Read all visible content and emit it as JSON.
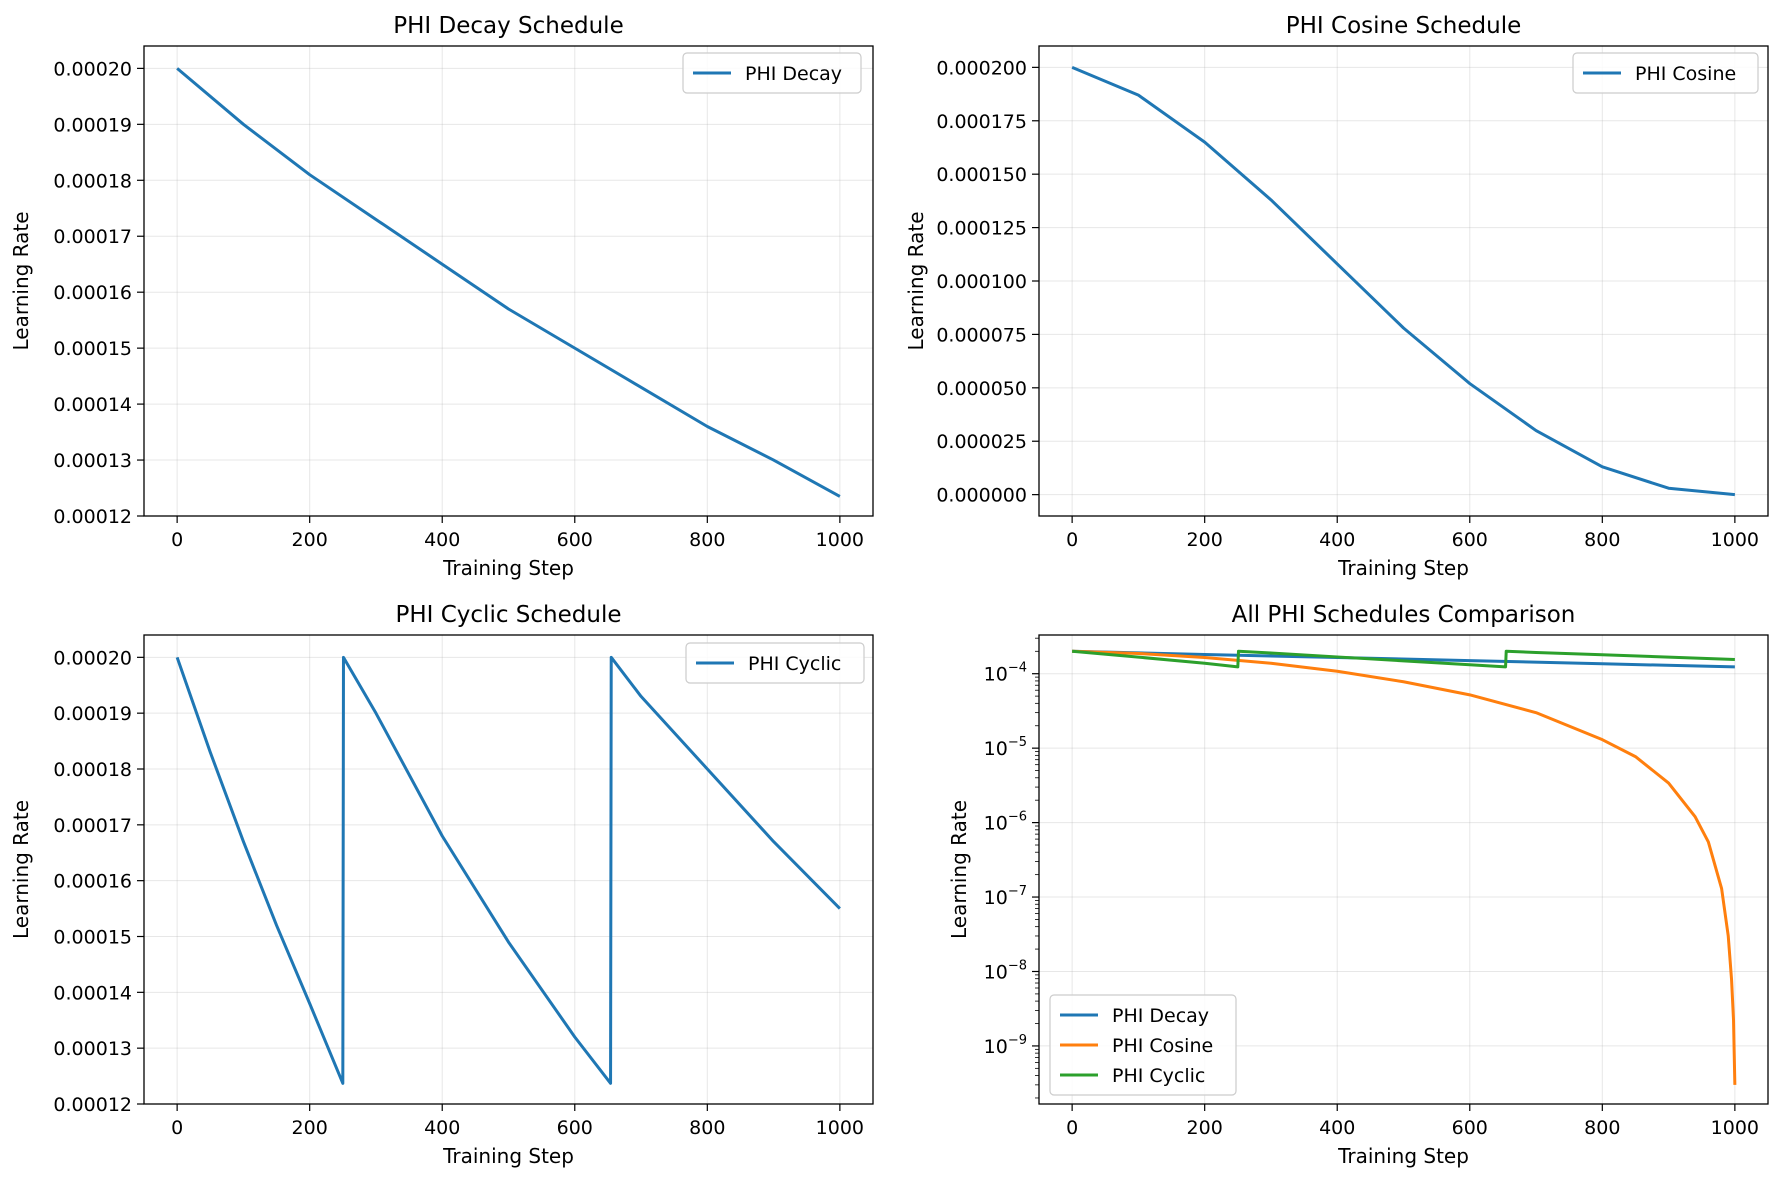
{
  "chart_data": [
    {
      "type": "line",
      "title": "PHI Decay Schedule",
      "xlabel": "Training Step",
      "ylabel": "Learning Rate",
      "xlim": [
        -50,
        1050
      ],
      "ylim": [
        0.00012,
        0.000204
      ],
      "xticks": [
        0,
        200,
        400,
        600,
        800,
        1000
      ],
      "yticks": [
        0.00012,
        0.00013,
        0.00014,
        0.00015,
        0.00016,
        0.00017,
        0.00018,
        0.00019,
        0.0002
      ],
      "ytick_labels": [
        "0.00012",
        "0.00013",
        "0.00014",
        "0.00015",
        "0.00016",
        "0.00017",
        "0.00018",
        "0.00019",
        "0.00020"
      ],
      "grid": true,
      "legend_position": "upper right",
      "series": [
        {
          "name": "PHI Decay",
          "color": "#1f77b4",
          "x": [
            0,
            100,
            200,
            300,
            400,
            500,
            600,
            700,
            800,
            900,
            1000
          ],
          "y": [
            0.0002,
            0.00019,
            0.000181,
            0.000173,
            0.000165,
            0.000157,
            0.00015,
            0.000143,
            0.000136,
            0.00013,
            0.0001235
          ]
        }
      ]
    },
    {
      "type": "line",
      "title": "PHI Cosine Schedule",
      "xlabel": "Training Step",
      "ylabel": "Learning Rate",
      "xlim": [
        -50,
        1050
      ],
      "ylim": [
        -1e-05,
        0.00021
      ],
      "xticks": [
        0,
        200,
        400,
        600,
        800,
        1000
      ],
      "yticks": [
        0,
        2.5e-05,
        5e-05,
        7.5e-05,
        0.0001,
        0.000125,
        0.00015,
        0.000175,
        0.0002
      ],
      "ytick_labels": [
        "0.000000",
        "0.000025",
        "0.000050",
        "0.000075",
        "0.000100",
        "0.000125",
        "0.000150",
        "0.000175",
        "0.000200"
      ],
      "grid": true,
      "legend_position": "upper right",
      "series": [
        {
          "name": "PHI Cosine",
          "color": "#1f77b4",
          "x": [
            0,
            100,
            200,
            300,
            400,
            500,
            600,
            700,
            800,
            900,
            1000
          ],
          "y": [
            0.0002,
            0.000187,
            0.000165,
            0.000138,
            0.000108,
            7.8e-05,
            5.2e-05,
            3e-05,
            1.3e-05,
            3e-06,
            0
          ]
        }
      ]
    },
    {
      "type": "line",
      "title": "PHI Cyclic Schedule",
      "xlabel": "Training Step",
      "ylabel": "Learning Rate",
      "xlim": [
        -50,
        1050
      ],
      "ylim": [
        0.00012,
        0.000204
      ],
      "xticks": [
        0,
        200,
        400,
        600,
        800,
        1000
      ],
      "yticks": [
        0.00012,
        0.00013,
        0.00014,
        0.00015,
        0.00016,
        0.00017,
        0.00018,
        0.00019,
        0.0002
      ],
      "ytick_labels": [
        "0.00012",
        "0.00013",
        "0.00014",
        "0.00015",
        "0.00016",
        "0.00017",
        "0.00018",
        "0.00019",
        "0.00020"
      ],
      "grid": true,
      "legend_position": "upper right",
      "series": [
        {
          "name": "PHI Cyclic",
          "color": "#1f77b4",
          "x": [
            0,
            50,
            100,
            150,
            200,
            250,
            251,
            300,
            400,
            500,
            600,
            654,
            655,
            700,
            800,
            900,
            1000
          ],
          "y": [
            0.0002,
            0.000183,
            0.000167,
            0.000152,
            0.000138,
            0.0001237,
            0.0002,
            0.00019,
            0.000168,
            0.000149,
            0.000132,
            0.0001237,
            0.0002,
            0.000193,
            0.00018,
            0.000167,
            0.000155
          ]
        }
      ]
    },
    {
      "type": "line",
      "title": "All PHI Schedules Comparison",
      "xlabel": "Training Step",
      "ylabel": "Learning Rate",
      "xlim": [
        -50,
        1050
      ],
      "ylim_log10": [
        -9.78,
        -3.48
      ],
      "yscale": "log",
      "xticks": [
        0,
        200,
        400,
        600,
        800,
        1000
      ],
      "yticks_exponent": [
        -9,
        -8,
        -7,
        -6,
        -5,
        -4
      ],
      "grid": true,
      "legend_position": "lower left",
      "series": [
        {
          "name": "PHI Decay",
          "color": "#1f77b4",
          "x": [
            0,
            200,
            400,
            600,
            800,
            1000
          ],
          "y": [
            0.0002,
            0.000181,
            0.000165,
            0.00015,
            0.000136,
            0.0001235
          ]
        },
        {
          "name": "PHI Cosine",
          "color": "#ff7f0e",
          "x": [
            0,
            100,
            200,
            300,
            400,
            500,
            600,
            700,
            800,
            850,
            900,
            940,
            960,
            980,
            990,
            995,
            998,
            999,
            1000
          ],
          "y": [
            0.0002,
            0.000187,
            0.000165,
            0.000138,
            0.000108,
            7.8e-05,
            5.2e-05,
            3e-05,
            1.3e-05,
            7.7e-06,
            3.4e-06,
            1.2e-06,
            5.5e-07,
            1.3e-07,
            3e-08,
            7.8e-09,
            2.2e-09,
            8e-10,
            3e-10
          ]
        },
        {
          "name": "PHI Cyclic",
          "color": "#2ca02c",
          "x": [
            0,
            100,
            200,
            250,
            251,
            300,
            400,
            500,
            600,
            654,
            655,
            700,
            800,
            900,
            1000
          ],
          "y": [
            0.0002,
            0.000167,
            0.000138,
            0.0001237,
            0.0002,
            0.00019,
            0.000168,
            0.000149,
            0.000132,
            0.0001237,
            0.0002,
            0.000193,
            0.00018,
            0.000167,
            0.000155
          ]
        }
      ]
    }
  ]
}
